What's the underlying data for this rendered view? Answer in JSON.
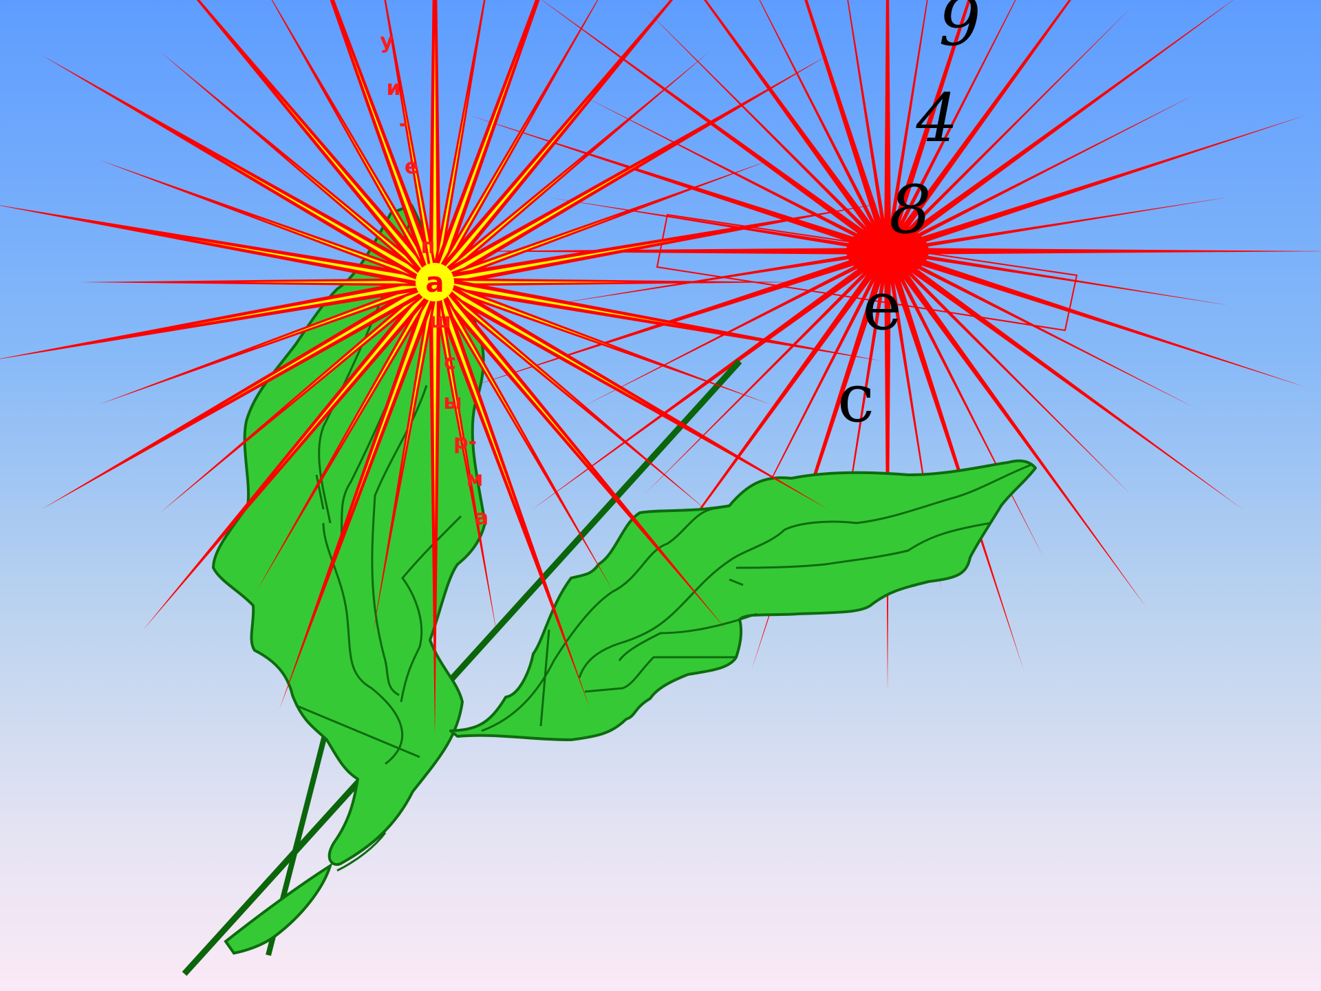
{
  "colors": {
    "leaf_fill": "#36c936",
    "leaf_stroke": "#0d6b0d",
    "stem": "#0b650b",
    "ray_red": "#ff0000",
    "ray_yellow": "#ffff00"
  },
  "sun_left": {
    "center_letter": "а",
    "ray_letters": [
      "у",
      "и",
      "-",
      "е",
      "п",
      "ш",
      "с",
      "ы",
      "р-",
      "м",
      "а"
    ]
  },
  "sun_right": {
    "digits": [
      "9",
      "4",
      "8"
    ],
    "letters": [
      "е",
      "с"
    ]
  },
  "icons": [
    "red-sunburst-icon",
    "leaf-icon",
    "stem-icon"
  ]
}
